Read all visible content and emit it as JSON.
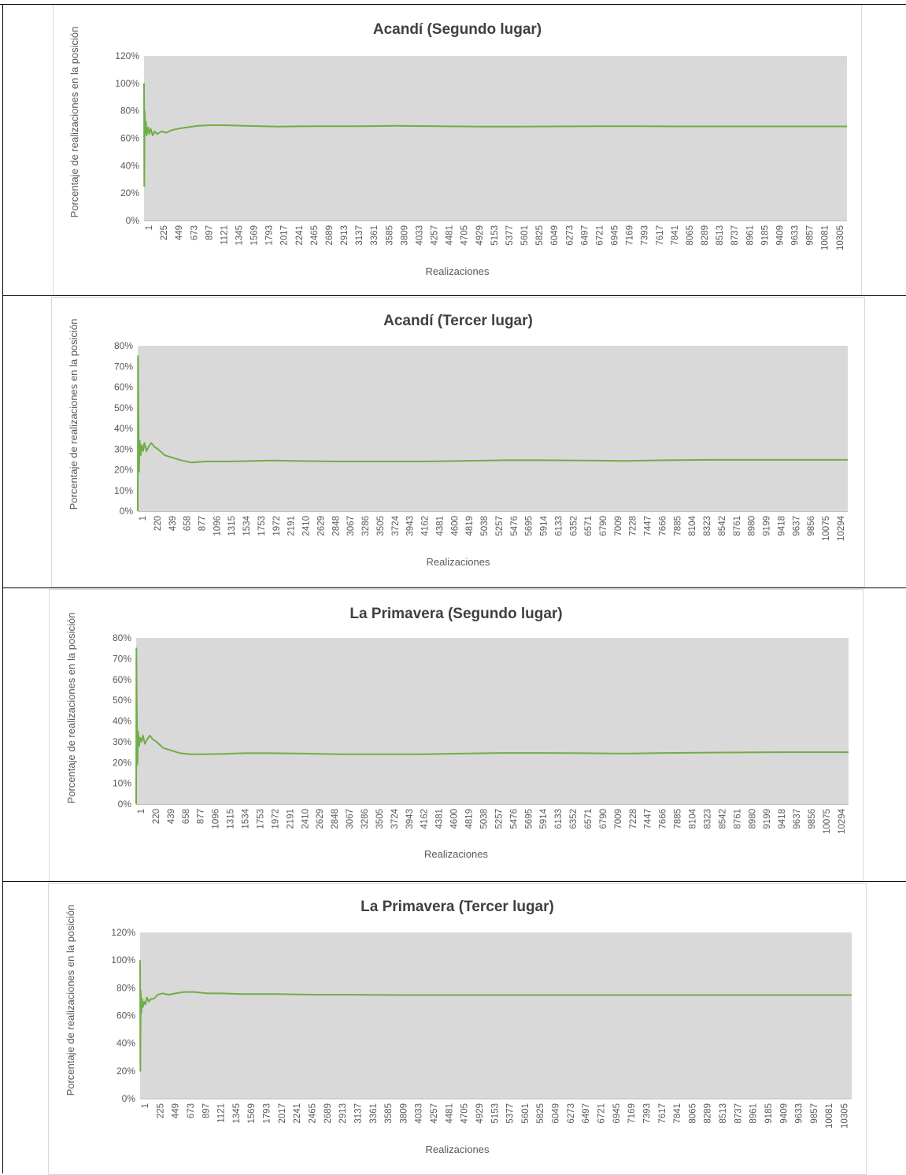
{
  "chart_data": [
    {
      "type": "line",
      "title": "Acandí (Segundo lugar)",
      "xlabel": "Realizaciones",
      "ylabel": "Porcentaje de realizaciones en la posición",
      "ylim": [
        0,
        120
      ],
      "yticks": [
        "0%",
        "20%",
        "40%",
        "60%",
        "80%",
        "100%",
        "120%"
      ],
      "yunit": "%",
      "grid": false,
      "plot_background": "#d9d9d9",
      "line_color": "#70ad47",
      "xticks": [
        "1",
        "225",
        "449",
        "673",
        "897",
        "1121",
        "1345",
        "1569",
        "1793",
        "2017",
        "2241",
        "2465",
        "2689",
        "2913",
        "3137",
        "3361",
        "3585",
        "3809",
        "4033",
        "4257",
        "4481",
        "4705",
        "4929",
        "5153",
        "5377",
        "5601",
        "5825",
        "6049",
        "6273",
        "6497",
        "6721",
        "6945",
        "7169",
        "7393",
        "7617",
        "7841",
        "8065",
        "8289",
        "8513",
        "8737",
        "8961",
        "9185",
        "9409",
        "9633",
        "9857",
        "10081",
        "10305"
      ],
      "xmax": 10500,
      "series": [
        {
          "x": [
            1,
            4,
            10,
            20,
            30,
            40,
            60,
            80,
            100,
            130,
            160,
            200,
            260,
            330,
            420,
            520,
            650,
            800,
            1000,
            1200,
            1500,
            2000,
            2600,
            3200,
            3800,
            4400,
            5000,
            5600,
            6200,
            6800,
            7400,
            8000,
            9000,
            10000,
            10500
          ],
          "y": [
            100,
            25,
            80,
            64,
            72,
            62,
            68,
            63,
            67,
            62,
            65,
            63,
            65,
            64,
            66,
            67,
            68,
            69,
            69.5,
            69.5,
            69,
            68.5,
            68.8,
            68.8,
            69,
            68.8,
            68.5,
            68.5,
            68.6,
            68.8,
            68.7,
            68.6,
            68.6,
            68.6,
            68.6
          ]
        }
      ]
    },
    {
      "type": "line",
      "title": "Acandí (Tercer lugar)",
      "xlabel": "Realizaciones",
      "ylabel": "Porcentaje de realizaciones en la posición",
      "ylim": [
        0,
        80
      ],
      "yticks": [
        "0%",
        "10%",
        "20%",
        "30%",
        "40%",
        "50%",
        "60%",
        "70%",
        "80%"
      ],
      "yunit": "%",
      "grid": false,
      "plot_background": "#d9d9d9",
      "line_color": "#70ad47",
      "xticks": [
        "1",
        "220",
        "439",
        "658",
        "877",
        "1096",
        "1315",
        "1534",
        "1753",
        "1972",
        "2191",
        "2410",
        "2629",
        "2848",
        "3067",
        "3286",
        "3505",
        "3724",
        "3943",
        "4162",
        "4381",
        "4600",
        "4819",
        "5038",
        "5257",
        "5476",
        "5695",
        "5914",
        "6133",
        "6352",
        "6571",
        "6790",
        "7009",
        "7228",
        "7447",
        "7666",
        "7885",
        "8104",
        "8323",
        "8542",
        "8761",
        "8980",
        "9199",
        "9418",
        "9637",
        "9856",
        "10075",
        "10294"
      ],
      "xmax": 10500,
      "series": [
        {
          "x": [
            1,
            5,
            10,
            20,
            30,
            45,
            60,
            80,
            100,
            130,
            160,
            200,
            250,
            300,
            400,
            500,
            650,
            800,
            1000,
            1300,
            1600,
            2000,
            2500,
            3000,
            3600,
            4200,
            4800,
            5400,
            6000,
            6600,
            7200,
            7800,
            8500,
            9500,
            10500
          ],
          "y": [
            0,
            75,
            48,
            19,
            34,
            27,
            32,
            29,
            33,
            29,
            31,
            33,
            31,
            30,
            27,
            26,
            24.5,
            23.5,
            24,
            24,
            24.2,
            24.5,
            24.2,
            24,
            24,
            24,
            24.3,
            24.6,
            24.6,
            24.5,
            24.3,
            24.6,
            24.8,
            24.8,
            24.8
          ]
        }
      ]
    },
    {
      "type": "line",
      "title": "La Primavera (Segundo lugar)",
      "xlabel": "Realizaciones",
      "ylabel": "Porcentaje de realizaciones en la posición",
      "ylim": [
        0,
        80
      ],
      "yticks": [
        "0%",
        "10%",
        "20%",
        "30%",
        "40%",
        "50%",
        "60%",
        "70%",
        "80%"
      ],
      "yunit": "%",
      "grid": false,
      "plot_background": "#d9d9d9",
      "line_color": "#70ad47",
      "xticks": [
        "1",
        "220",
        "439",
        "658",
        "877",
        "1096",
        "1315",
        "1534",
        "1753",
        "1972",
        "2191",
        "2410",
        "2629",
        "2848",
        "3067",
        "3286",
        "3505",
        "3724",
        "3943",
        "4162",
        "4381",
        "4600",
        "4819",
        "5038",
        "5257",
        "5476",
        "5695",
        "5914",
        "6133",
        "6352",
        "6571",
        "6790",
        "7009",
        "7228",
        "7447",
        "7666",
        "7885",
        "8104",
        "8323",
        "8542",
        "8761",
        "8980",
        "9199",
        "9418",
        "9637",
        "9856",
        "10075",
        "10294"
      ],
      "xmax": 10500,
      "series": [
        {
          "x": [
            1,
            5,
            10,
            20,
            30,
            45,
            60,
            80,
            100,
            130,
            160,
            200,
            250,
            300,
            400,
            500,
            650,
            800,
            1000,
            1300,
            1600,
            2000,
            2500,
            3000,
            3600,
            4200,
            4800,
            5400,
            6000,
            6600,
            7200,
            7800,
            8500,
            9500,
            10500
          ],
          "y": [
            0,
            75,
            47,
            19,
            35,
            28,
            32,
            30,
            33,
            29,
            31,
            33,
            31,
            30,
            27,
            26,
            24.5,
            24,
            24,
            24.2,
            24.5,
            24.5,
            24.3,
            24,
            24,
            24,
            24.3,
            24.6,
            24.6,
            24.5,
            24.3,
            24.6,
            24.8,
            25,
            25
          ]
        }
      ]
    },
    {
      "type": "line",
      "title": "La Primavera (Tercer lugar)",
      "xlabel": "Realizaciones",
      "ylabel": "Porcentaje de realizaciones en la posición",
      "ylim": [
        0,
        120
      ],
      "yticks": [
        "0%",
        "20%",
        "40%",
        "60%",
        "80%",
        "100%",
        "120%"
      ],
      "yunit": "%",
      "grid": false,
      "plot_background": "#d9d9d9",
      "line_color": "#70ad47",
      "xticks": [
        "1",
        "225",
        "449",
        "673",
        "897",
        "1121",
        "1345",
        "1569",
        "1793",
        "2017",
        "2241",
        "2465",
        "2689",
        "2913",
        "3137",
        "3361",
        "3585",
        "3809",
        "4033",
        "4257",
        "4481",
        "4705",
        "4929",
        "5153",
        "5377",
        "5601",
        "5825",
        "6049",
        "6273",
        "6497",
        "6721",
        "6945",
        "7169",
        "7393",
        "7617",
        "7841",
        "8065",
        "8289",
        "8513",
        "8737",
        "8961",
        "9185",
        "9409",
        "9633",
        "9857",
        "10081",
        "10305"
      ],
      "xmax": 10500,
      "series": [
        {
          "x": [
            1,
            4,
            10,
            20,
            30,
            40,
            60,
            80,
            100,
            130,
            160,
            200,
            260,
            330,
            420,
            520,
            650,
            800,
            1000,
            1200,
            1500,
            2000,
            2600,
            3200,
            3800,
            4400,
            5000,
            5600,
            6200,
            6800,
            7400,
            8000,
            9000,
            10000,
            10500
          ],
          "y": [
            100,
            20,
            78,
            62,
            72,
            66,
            70,
            68,
            73,
            70,
            72,
            72,
            75,
            76,
            75,
            76,
            77,
            77,
            76,
            76,
            75.5,
            75.5,
            75,
            75,
            74.8,
            74.8,
            74.8,
            74.8,
            74.8,
            74.8,
            74.8,
            74.8,
            74.8,
            74.8,
            74.8
          ]
        }
      ]
    }
  ]
}
